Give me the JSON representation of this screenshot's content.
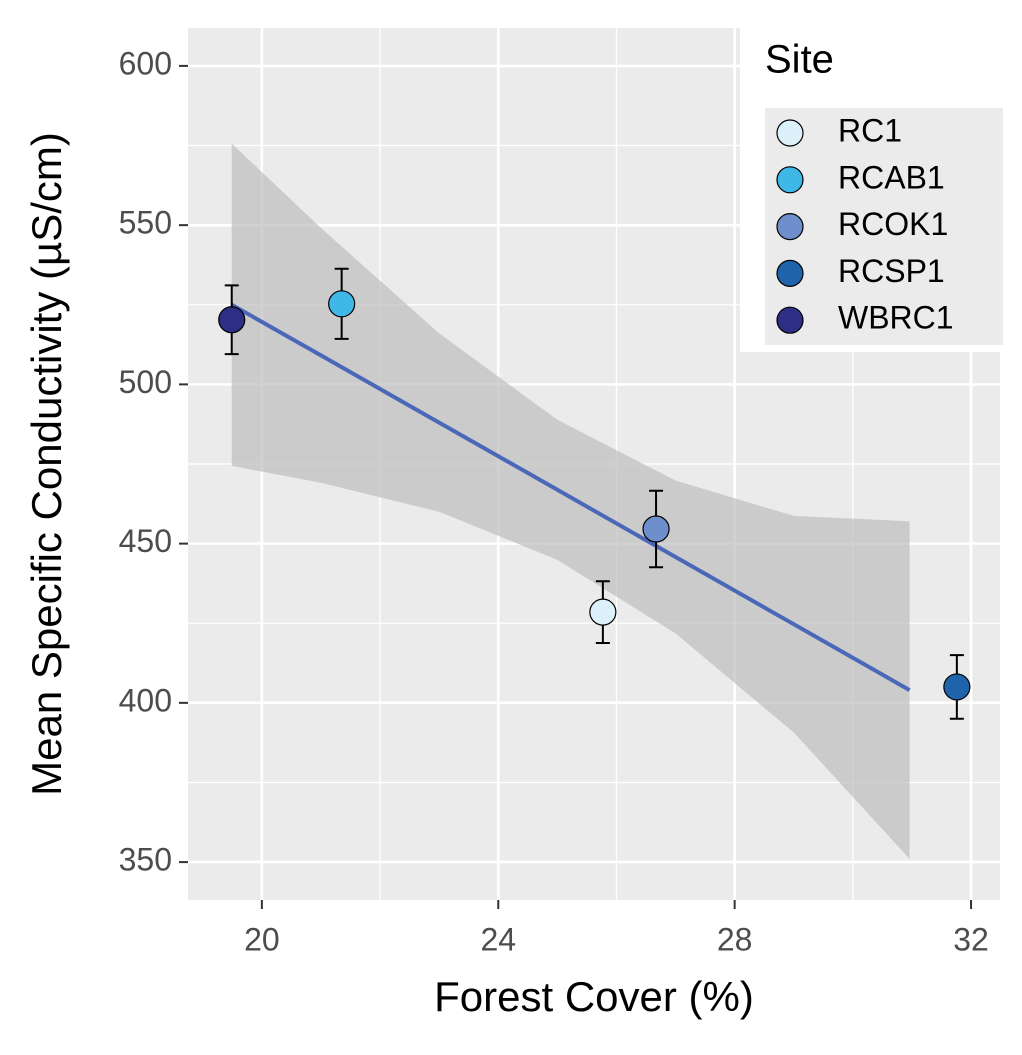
{
  "chart_data": {
    "type": "scatter",
    "x_label": "Forest Cover (%)",
    "y_label": "Mean Specific Conductivity (µS/cm)",
    "legend_title": "Site",
    "legend": "top-right",
    "grid": true,
    "xlim": [
      18.75,
      32.49
    ],
    "ylim": [
      338.1,
      611.9
    ],
    "xticks": [
      20,
      24,
      28,
      32
    ],
    "yticks": [
      350,
      400,
      450,
      500,
      550,
      600
    ],
    "series": [
      {
        "name": "RC1",
        "color": "#ddf1fa",
        "x": [
          25.77
        ],
        "values": [
          428.5
        ],
        "errors": [
          9.7
        ]
      },
      {
        "name": "RCAB1",
        "color": "#3fb8e8",
        "x": [
          21.35
        ],
        "values": [
          525.3
        ],
        "errors": [
          11
        ]
      },
      {
        "name": "RCOK1",
        "color": "#6e8fcb",
        "x": [
          26.67
        ],
        "values": [
          454.6
        ],
        "errors": [
          12
        ]
      },
      {
        "name": "RCSP1",
        "color": "#1f64ab",
        "x": [
          31.76
        ],
        "values": [
          405
        ],
        "errors": [
          10
        ]
      },
      {
        "name": "WBRC1",
        "color": "#2e2f84",
        "x": [
          19.49
        ],
        "values": [
          520.3
        ],
        "errors": [
          10.8
        ]
      }
    ],
    "fit": {
      "color": "#4b68b8",
      "band_color": "#bdbdbd",
      "x": [
        19.49,
        21,
        23,
        25,
        27,
        29,
        30.96
      ],
      "values": [
        525,
        509.1,
        488.0,
        466.9,
        445.8,
        424.7,
        404.0
      ],
      "lower": [
        474.4,
        469.1,
        460.0,
        444.9,
        421.8,
        390.7,
        351.0
      ],
      "upper": [
        575.6,
        549.1,
        516.0,
        488.9,
        469.8,
        458.7,
        457.0
      ]
    }
  }
}
